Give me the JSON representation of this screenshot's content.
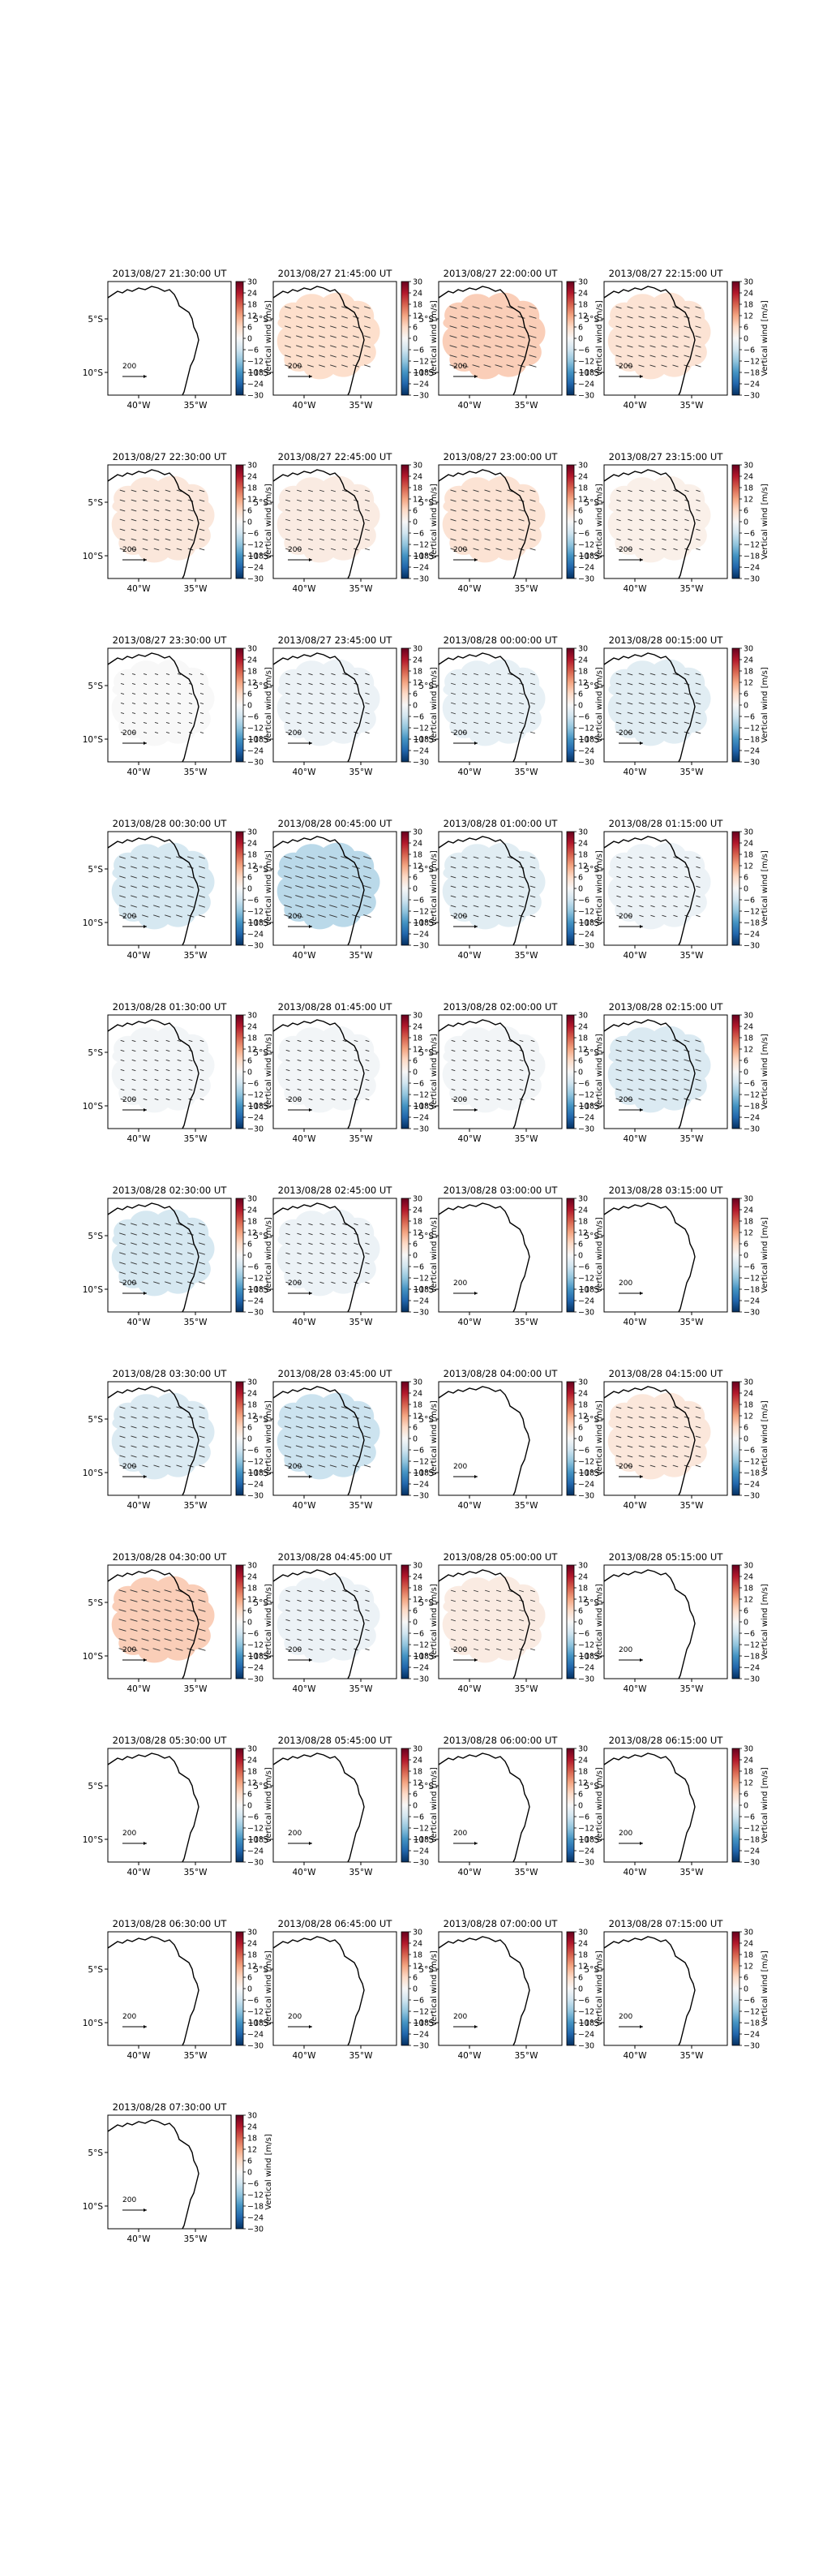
{
  "figure": {
    "colorbar_label": "Vertical wind [m/s]",
    "colorbar_ticks": [
      30,
      24,
      18,
      12,
      6,
      0,
      -6,
      -12,
      -18,
      -24,
      -30
    ],
    "colorbar_range": [
      -30,
      30
    ],
    "colormap": [
      "#053061",
      "#2166ac",
      "#4393c3",
      "#92c5de",
      "#d1e5f0",
      "#f7f7f7",
      "#fddbc7",
      "#f4a582",
      "#d6604d",
      "#b2182b",
      "#67001f"
    ],
    "x_ticks": [
      "40°W",
      "35°W"
    ],
    "y_ticks": [
      "5°S",
      "10°S"
    ],
    "reference_arrow_label": "200",
    "coastline_color": "#000000",
    "arrow_color": "#333333"
  },
  "chart_data": {
    "type": "heatmap",
    "description_units": "Vertical wind [m/s]",
    "panels": [
      {
        "title": "2013/08/27 21:30:00 UT",
        "mean_vertical_wind": 0,
        "has_data": false,
        "arrows": false
      },
      {
        "title": "2013/08/27 21:45:00 UT",
        "mean_vertical_wind": 6,
        "has_data": true,
        "arrows": true
      },
      {
        "title": "2013/08/27 22:00:00 UT",
        "mean_vertical_wind": 8,
        "has_data": true,
        "arrows": true
      },
      {
        "title": "2013/08/27 22:15:00 UT",
        "mean_vertical_wind": 5,
        "has_data": true,
        "arrows": true
      },
      {
        "title": "2013/08/27 22:30:00 UT",
        "mean_vertical_wind": 4,
        "has_data": true,
        "arrows": true
      },
      {
        "title": "2013/08/27 22:45:00 UT",
        "mean_vertical_wind": 3,
        "has_data": true,
        "arrows": true
      },
      {
        "title": "2013/08/27 23:00:00 UT",
        "mean_vertical_wind": 5,
        "has_data": true,
        "arrows": true
      },
      {
        "title": "2013/08/27 23:15:00 UT",
        "mean_vertical_wind": 2,
        "has_data": true,
        "arrows": true
      },
      {
        "title": "2013/08/27 23:30:00 UT",
        "mean_vertical_wind": 0,
        "has_data": true,
        "arrows": true
      },
      {
        "title": "2013/08/27 23:45:00 UT",
        "mean_vertical_wind": -2,
        "has_data": true,
        "arrows": true
      },
      {
        "title": "2013/08/28 00:00:00 UT",
        "mean_vertical_wind": -3,
        "has_data": true,
        "arrows": true
      },
      {
        "title": "2013/08/28 00:15:00 UT",
        "mean_vertical_wind": -4,
        "has_data": true,
        "arrows": true
      },
      {
        "title": "2013/08/28 00:30:00 UT",
        "mean_vertical_wind": -6,
        "has_data": true,
        "arrows": true
      },
      {
        "title": "2013/08/28 00:45:00 UT",
        "mean_vertical_wind": -9,
        "has_data": true,
        "arrows": true
      },
      {
        "title": "2013/08/28 01:00:00 UT",
        "mean_vertical_wind": -4,
        "has_data": true,
        "arrows": true
      },
      {
        "title": "2013/08/28 01:15:00 UT",
        "mean_vertical_wind": -2,
        "has_data": true,
        "arrows": true
      },
      {
        "title": "2013/08/28 01:30:00 UT",
        "mean_vertical_wind": -1,
        "has_data": true,
        "arrows": true
      },
      {
        "title": "2013/08/28 01:45:00 UT",
        "mean_vertical_wind": -1,
        "has_data": true,
        "arrows": true
      },
      {
        "title": "2013/08/28 02:00:00 UT",
        "mean_vertical_wind": -1,
        "has_data": true,
        "arrows": true
      },
      {
        "title": "2013/08/28 02:15:00 UT",
        "mean_vertical_wind": -5,
        "has_data": true,
        "arrows": true
      },
      {
        "title": "2013/08/28 02:30:00 UT",
        "mean_vertical_wind": -6,
        "has_data": true,
        "arrows": true
      },
      {
        "title": "2013/08/28 02:45:00 UT",
        "mean_vertical_wind": -2,
        "has_data": true,
        "arrows": true
      },
      {
        "title": "2013/08/28 03:00:00 UT",
        "mean_vertical_wind": 0,
        "has_data": false,
        "arrows": false
      },
      {
        "title": "2013/08/28 03:15:00 UT",
        "mean_vertical_wind": 0,
        "has_data": false,
        "arrows": false
      },
      {
        "title": "2013/08/28 03:30:00 UT",
        "mean_vertical_wind": -5,
        "has_data": true,
        "arrows": true
      },
      {
        "title": "2013/08/28 03:45:00 UT",
        "mean_vertical_wind": -7,
        "has_data": true,
        "arrows": true
      },
      {
        "title": "2013/08/28 04:00:00 UT",
        "mean_vertical_wind": 0,
        "has_data": false,
        "arrows": false
      },
      {
        "title": "2013/08/28 04:15:00 UT",
        "mean_vertical_wind": 4,
        "has_data": true,
        "arrows": true
      },
      {
        "title": "2013/08/28 04:30:00 UT",
        "mean_vertical_wind": 8,
        "has_data": true,
        "arrows": true
      },
      {
        "title": "2013/08/28 04:45:00 UT",
        "mean_vertical_wind": -2,
        "has_data": true,
        "arrows": true
      },
      {
        "title": "2013/08/28 05:00:00 UT",
        "mean_vertical_wind": 3,
        "has_data": true,
        "arrows": true
      },
      {
        "title": "2013/08/28 05:15:00 UT",
        "mean_vertical_wind": 0,
        "has_data": false,
        "arrows": false
      },
      {
        "title": "2013/08/28 05:30:00 UT",
        "mean_vertical_wind": 0,
        "has_data": false,
        "arrows": false
      },
      {
        "title": "2013/08/28 05:45:00 UT",
        "mean_vertical_wind": 0,
        "has_data": false,
        "arrows": false
      },
      {
        "title": "2013/08/28 06:00:00 UT",
        "mean_vertical_wind": 0,
        "has_data": false,
        "arrows": false
      },
      {
        "title": "2013/08/28 06:15:00 UT",
        "mean_vertical_wind": 0,
        "has_data": false,
        "arrows": false
      },
      {
        "title": "2013/08/28 06:30:00 UT",
        "mean_vertical_wind": 0,
        "has_data": false,
        "arrows": false
      },
      {
        "title": "2013/08/28 06:45:00 UT",
        "mean_vertical_wind": 0,
        "has_data": false,
        "arrows": false
      },
      {
        "title": "2013/08/28 07:00:00 UT",
        "mean_vertical_wind": 0,
        "has_data": false,
        "arrows": false
      },
      {
        "title": "2013/08/28 07:15:00 UT",
        "mean_vertical_wind": 0,
        "has_data": false,
        "arrows": false
      },
      {
        "title": "2013/08/28 07:30:00 UT",
        "mean_vertical_wind": 0,
        "has_data": false,
        "arrows": false
      }
    ]
  }
}
